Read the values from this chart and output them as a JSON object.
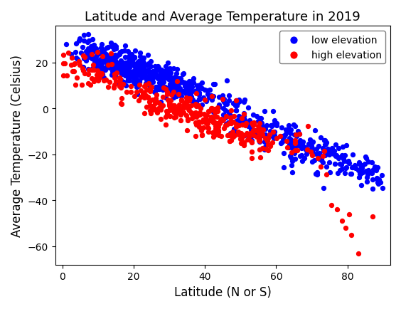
{
  "title": "Latitude and Average Temperature in 2019",
  "xlabel": "Latitude (N or S)",
  "ylabel": "Average Temperature (Celsius)",
  "low_elevation_color": "#0000ff",
  "high_elevation_color": "#ff0000",
  "low_elevation_label": "low elevation",
  "high_elevation_label": "high elevation",
  "marker_size": 18,
  "xlim": [
    -2,
    92
  ],
  "ylim": [
    -68,
    36
  ],
  "legend_loc": "upper right",
  "random_seed": 77
}
